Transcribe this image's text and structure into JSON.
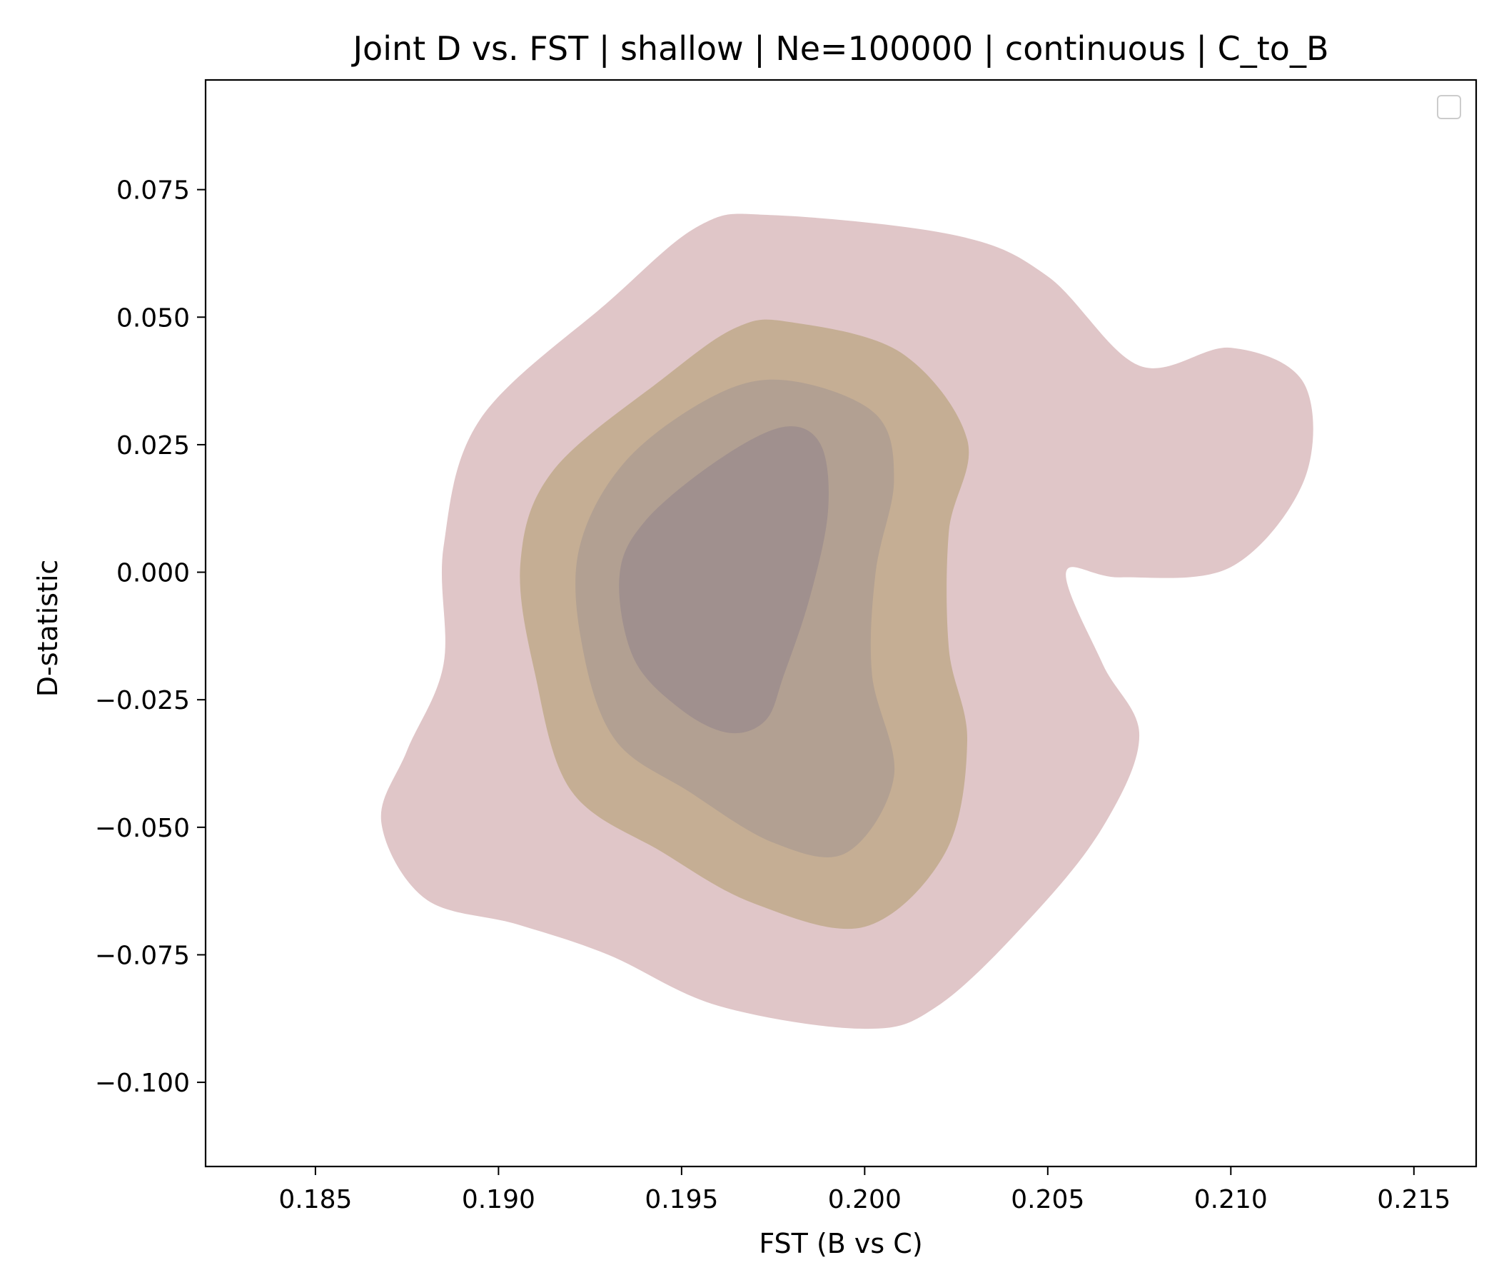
{
  "chart_data": {
    "type": "contour",
    "title": "Joint D vs. FST | shallow | Ne=100000 | continuous | C_to_B",
    "xlabel": "FST (B vs C)",
    "ylabel": "D-statistic",
    "xlim": [
      0.182,
      0.2167
    ],
    "ylim": [
      -0.1165,
      0.0965
    ],
    "xticks": [
      0.185,
      0.19,
      0.195,
      0.2,
      0.205,
      0.21,
      0.215
    ],
    "xtick_labels": [
      "0.185",
      "0.190",
      "0.195",
      "0.200",
      "0.205",
      "0.210",
      "0.215"
    ],
    "yticks": [
      0.075,
      0.05,
      0.025,
      0.0,
      -0.025,
      -0.05,
      -0.075,
      -0.1
    ],
    "ytick_labels": [
      "0.075",
      "0.050",
      "0.025",
      "0.000",
      "−0.025",
      "−0.050",
      "−0.075",
      "−0.100"
    ],
    "grid": false,
    "legend": {
      "placement": "upper right",
      "entries": []
    },
    "levels": [
      {
        "level": 1,
        "color": "#e0c6c8",
        "boundary": [
          [
            0.1975,
            0.07
          ],
          [
            0.2025,
            0.066
          ],
          [
            0.205,
            0.058
          ],
          [
            0.2075,
            0.0405
          ],
          [
            0.21,
            0.044
          ],
          [
            0.212,
            0.037
          ],
          [
            0.212,
            0.018
          ],
          [
            0.21,
            0.001
          ],
          [
            0.207,
            -0.001
          ],
          [
            0.2055,
            0.0
          ],
          [
            0.2065,
            -0.018
          ],
          [
            0.2075,
            -0.032
          ],
          [
            0.2065,
            -0.05
          ],
          [
            0.2045,
            -0.068
          ],
          [
            0.202,
            -0.085
          ],
          [
            0.2,
            -0.0895
          ],
          [
            0.196,
            -0.085
          ],
          [
            0.193,
            -0.075
          ],
          [
            0.1905,
            -0.069
          ],
          [
            0.188,
            -0.064
          ],
          [
            0.1868,
            -0.049
          ],
          [
            0.1875,
            -0.035
          ],
          [
            0.1885,
            -0.018
          ],
          [
            0.1885,
            0.005
          ],
          [
            0.1895,
            0.03
          ],
          [
            0.193,
            0.053
          ],
          [
            0.1955,
            0.068
          ]
        ]
      },
      {
        "level": 2,
        "color": "#c5ae94",
        "boundary": [
          [
            0.198,
            0.049
          ],
          [
            0.201,
            0.043
          ],
          [
            0.2028,
            0.026
          ],
          [
            0.2023,
            0.008
          ],
          [
            0.2023,
            -0.015
          ],
          [
            0.2028,
            -0.033
          ],
          [
            0.2022,
            -0.055
          ],
          [
            0.2,
            -0.0695
          ],
          [
            0.197,
            -0.065
          ],
          [
            0.1945,
            -0.055
          ],
          [
            0.192,
            -0.043
          ],
          [
            0.191,
            -0.02
          ],
          [
            0.1906,
            0.002
          ],
          [
            0.1915,
            0.02
          ],
          [
            0.1945,
            0.038
          ],
          [
            0.1965,
            0.048
          ]
        ]
      },
      {
        "level": 3,
        "color": "#b2a092",
        "boundary": [
          [
            0.198,
            0.0375
          ],
          [
            0.2003,
            0.031
          ],
          [
            0.2008,
            0.018
          ],
          [
            0.2003,
            0.0
          ],
          [
            0.2002,
            -0.02
          ],
          [
            0.2008,
            -0.04
          ],
          [
            0.1995,
            -0.055
          ],
          [
            0.1975,
            -0.053
          ],
          [
            0.1952,
            -0.043
          ],
          [
            0.1932,
            -0.033
          ],
          [
            0.1923,
            -0.015
          ],
          [
            0.1922,
            0.0045
          ],
          [
            0.1935,
            0.022
          ],
          [
            0.196,
            0.035
          ]
        ]
      },
      {
        "level": 4,
        "color": "#a0908e",
        "boundary": [
          [
            0.1978,
            0.0285
          ],
          [
            0.1988,
            0.025
          ],
          [
            0.199,
            0.012
          ],
          [
            0.1985,
            -0.005
          ],
          [
            0.1978,
            -0.02
          ],
          [
            0.1973,
            -0.029
          ],
          [
            0.1963,
            -0.0315
          ],
          [
            0.195,
            -0.027
          ],
          [
            0.1937,
            -0.017
          ],
          [
            0.1933,
            -0.001
          ],
          [
            0.194,
            0.01
          ],
          [
            0.196,
            0.022
          ]
        ]
      }
    ]
  }
}
